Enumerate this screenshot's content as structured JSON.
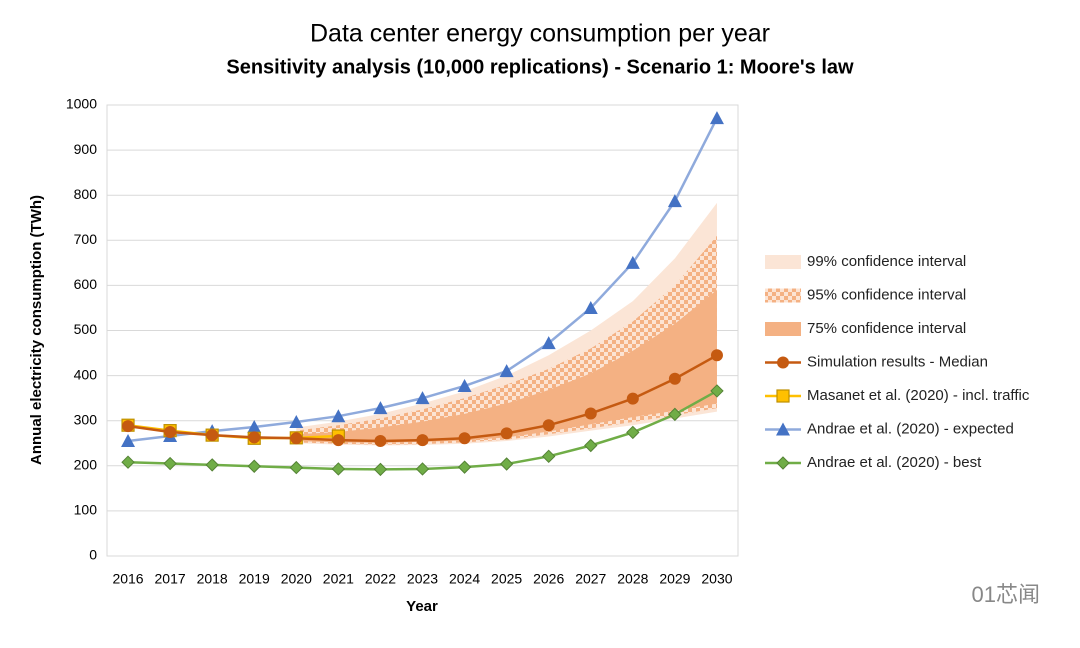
{
  "chart_data": {
    "type": "line",
    "title": "Data center energy consumption per year",
    "subtitle": "Sensitivity analysis (10,000 replications) - Scenario 1: Moore's law",
    "x_label": "Year",
    "y_label": "Annual electricity consumption (TWh)",
    "watermark": "01芯闻",
    "categories": [
      "2016",
      "2017",
      "2018",
      "2019",
      "2020",
      "2021",
      "2022",
      "2023",
      "2024",
      "2025",
      "2026",
      "2027",
      "2028",
      "2029",
      "2030"
    ],
    "ylim": [
      0,
      1000
    ],
    "yticks": [
      0,
      100,
      200,
      300,
      400,
      500,
      600,
      700,
      800,
      900,
      1000
    ],
    "grid": true,
    "legend": "right",
    "bands": [
      {
        "name": "99% confidence interval",
        "color": "#fbe5d6",
        "pattern": false,
        "lower": [
          null,
          null,
          null,
          null,
          250,
          247,
          245,
          246,
          249,
          255,
          265,
          278,
          290,
          305,
          320
        ],
        "upper": [
          null,
          null,
          null,
          null,
          285,
          298,
          315,
          338,
          365,
          400,
          445,
          500,
          565,
          660,
          783
        ]
      },
      {
        "name": "95% confidence interval",
        "color": "#f5b58a",
        "pattern": true,
        "lower": [
          null,
          null,
          null,
          null,
          252,
          249,
          247,
          248,
          252,
          258,
          270,
          283,
          297,
          312,
          328
        ],
        "upper": [
          null,
          null,
          null,
          null,
          278,
          290,
          305,
          325,
          350,
          380,
          415,
          460,
          520,
          600,
          710
        ]
      },
      {
        "name": "75% confidence interval",
        "color": "#f4b183",
        "pattern": false,
        "lower": [
          null,
          null,
          null,
          null,
          255,
          252,
          251,
          253,
          256,
          263,
          276,
          292,
          308,
          322,
          338
        ],
        "upper": [
          null,
          null,
          null,
          null,
          270,
          275,
          285,
          298,
          315,
          338,
          368,
          405,
          455,
          515,
          590
        ]
      }
    ],
    "series": [
      {
        "name": "Simulation results - Median",
        "color": "#c55a11",
        "marker": "circle",
        "marker_color": "#c55a11",
        "values": [
          288,
          275,
          268,
          263,
          261,
          257,
          255,
          257,
          261,
          272,
          290,
          316,
          349,
          393,
          445
        ]
      },
      {
        "name": "Masanet et al. (2020) - incl. traffic",
        "color": "#ffc000",
        "marker": "square",
        "marker_color": "#ffc000",
        "values": [
          290,
          278,
          268,
          261,
          262,
          266,
          null,
          null,
          null,
          null,
          null,
          null,
          null,
          null,
          null
        ]
      },
      {
        "name": "Andrae et al. (2020) - expected",
        "color": "#8faadc",
        "marker": "triangle",
        "marker_color": "#4472c4",
        "values": [
          255,
          266,
          277,
          286,
          297,
          310,
          328,
          350,
          377,
          410,
          472,
          550,
          650,
          787,
          971
        ]
      },
      {
        "name": "Andrae et al. (2020) - best",
        "color": "#70ad47",
        "marker": "diamond",
        "marker_color": "#70ad47",
        "values": [
          208,
          205,
          202,
          199,
          196,
          193,
          192,
          193,
          197,
          204,
          221,
          245,
          274,
          314,
          366
        ]
      }
    ]
  }
}
